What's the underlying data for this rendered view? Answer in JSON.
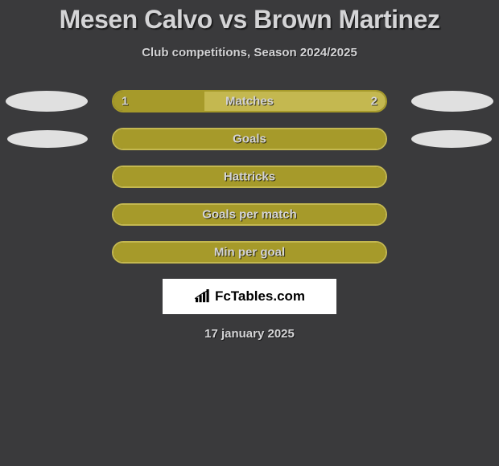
{
  "title": "Mesen Calvo vs Brown Martinez",
  "subtitle": "Club competitions, Season 2024/2025",
  "rows": [
    {
      "label": "Matches",
      "left_value": "1",
      "right_value": "2",
      "left_pct": 33.3,
      "right_pct": 66.7,
      "left_color": "#a69a2a",
      "right_color": "#c4b850",
      "border_color": "#a69a2a",
      "show_ellipses": true,
      "ellipse_small": false
    },
    {
      "label": "Goals",
      "left_value": "",
      "right_value": "",
      "left_pct": 100,
      "right_pct": 0,
      "left_color": "#a69a2a",
      "right_color": "#a69a2a",
      "border_color": "#c4b850",
      "show_ellipses": true,
      "ellipse_small": true
    },
    {
      "label": "Hattricks",
      "left_value": "",
      "right_value": "",
      "left_pct": 100,
      "right_pct": 0,
      "left_color": "#a69a2a",
      "right_color": "#a69a2a",
      "border_color": "#c4b850",
      "show_ellipses": false,
      "ellipse_small": false
    },
    {
      "label": "Goals per match",
      "left_value": "",
      "right_value": "",
      "left_pct": 100,
      "right_pct": 0,
      "left_color": "#a69a2a",
      "right_color": "#a69a2a",
      "border_color": "#c4b850",
      "show_ellipses": false,
      "ellipse_small": false
    },
    {
      "label": "Min per goal",
      "left_value": "",
      "right_value": "",
      "left_pct": 100,
      "right_pct": 0,
      "left_color": "#a69a2a",
      "right_color": "#a69a2a",
      "border_color": "#c4b850",
      "show_ellipses": false,
      "ellipse_small": false
    }
  ],
  "brand": "FcTables.com",
  "date": "17 january 2025",
  "colors": {
    "background": "#3a3a3c",
    "text": "#d4d4d6",
    "ellipse": "#e0e0e0",
    "brand_bg": "#ffffff",
    "brand_text": "#000000"
  },
  "typography": {
    "title_fontsize": 32,
    "subtitle_fontsize": 15,
    "label_fontsize": 15,
    "brand_fontsize": 17
  }
}
